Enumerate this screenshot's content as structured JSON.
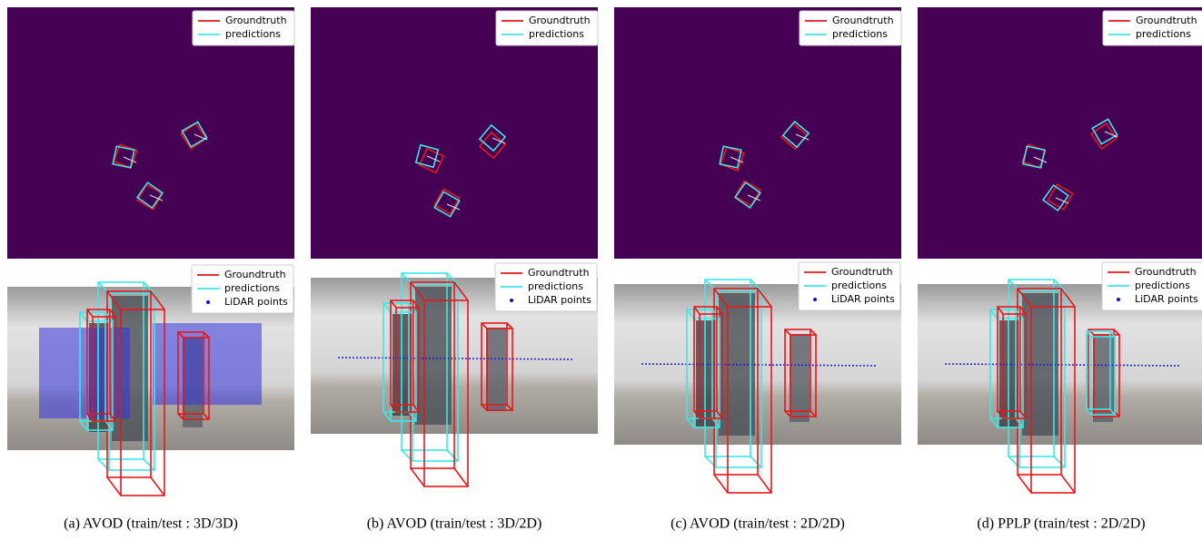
{
  "panels": [
    {
      "caption": "(a) AVOD (train/test : 3D/3D)",
      "top_legend": [
        "Groundtruth",
        "predictions"
      ],
      "bottom_legend": [
        "Groundtruth",
        "predictions",
        "LiDAR points"
      ]
    },
    {
      "caption": "(b) AVOD (train/test : 3D/2D)",
      "top_legend": [
        "Groundtruth",
        "predictions"
      ],
      "bottom_legend": [
        "Groundtruth",
        "predictions",
        "LiDAR points"
      ]
    },
    {
      "caption": "(c) AVOD (train/test : 2D/2D)",
      "top_legend": [
        "Groundtruth",
        "predictions"
      ],
      "bottom_legend": [
        "Groundtruth",
        "predictions",
        "LiDAR points"
      ]
    },
    {
      "caption": "(d) PPLP (train/test : 2D/2D)",
      "top_legend": [
        "Groundtruth",
        "predictions"
      ],
      "bottom_legend": [
        "Groundtruth",
        "predictions",
        "LiDAR points"
      ]
    }
  ]
}
